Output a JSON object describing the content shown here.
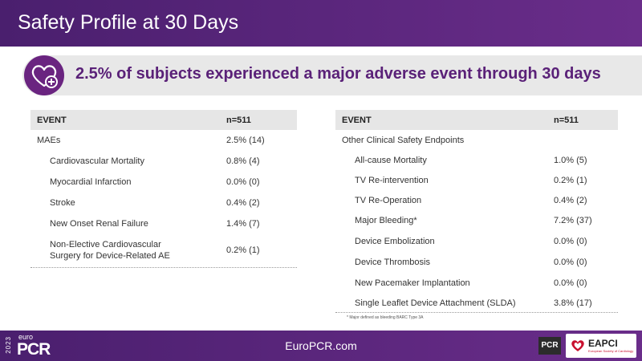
{
  "header": {
    "title": "Safety Profile at 30 Days"
  },
  "banner": {
    "icon": "heart-plus-icon",
    "text": "2.5% of subjects experienced a major adverse event through 30 days"
  },
  "left_table": {
    "headers": [
      "EVENT",
      "n=511"
    ],
    "rows": [
      {
        "event": "MAEs",
        "value": "2.5% (14)"
      },
      {
        "event": "Cardiovascular Mortality",
        "value": "0.8% (4)"
      },
      {
        "event": "Myocardial Infarction",
        "value": "0.0% (0)"
      },
      {
        "event": "Stroke",
        "value": "0.4% (2)"
      },
      {
        "event": "New Onset Renal Failure",
        "value": "1.4% (7)"
      },
      {
        "event_line1": "Non-Elective Cardiovascular",
        "event_line2": "Surgery for Device-Related AE",
        "value": "0.2% (1)"
      }
    ]
  },
  "right_table": {
    "headers": [
      "EVENT",
      "n=511"
    ],
    "rows": [
      {
        "event": "Other Clinical Safety Endpoints",
        "value": ""
      },
      {
        "event": "All-cause Mortality",
        "value": "1.0% (5)"
      },
      {
        "event": "TV Re-intervention",
        "value": "0.2% (1)"
      },
      {
        "event": "TV Re-Operation",
        "value": "0.4% (2)"
      },
      {
        "event": "Major Bleeding*",
        "value": "7.2% (37)"
      },
      {
        "event": "Device Embolization",
        "value": "0.0% (0)"
      },
      {
        "event": "Device Thrombosis",
        "value": "0.0% (0)"
      },
      {
        "event": "New Pacemaker Implantation",
        "value": "0.0% (0)"
      },
      {
        "event": "Single Leaflet Device Attachment (SLDA)",
        "value": "3.8% (17)"
      }
    ]
  },
  "footnote": "* Major defined as bleeding BARC Type 3A",
  "footer": {
    "url": "EuroPCR.com",
    "logo_year": "2023",
    "logo_euro": "euro",
    "logo_pcr": "PCR",
    "pcr_badge": "PCR",
    "eapci": "EAPCI",
    "eapci_sub": "European Society of Cardiology"
  },
  "colors": {
    "purple_dark": "#4a1f6e",
    "purple_accent": "#5a2178",
    "banner_bg": "#e8e8e8",
    "table_header_bg": "#e6e6e6"
  }
}
